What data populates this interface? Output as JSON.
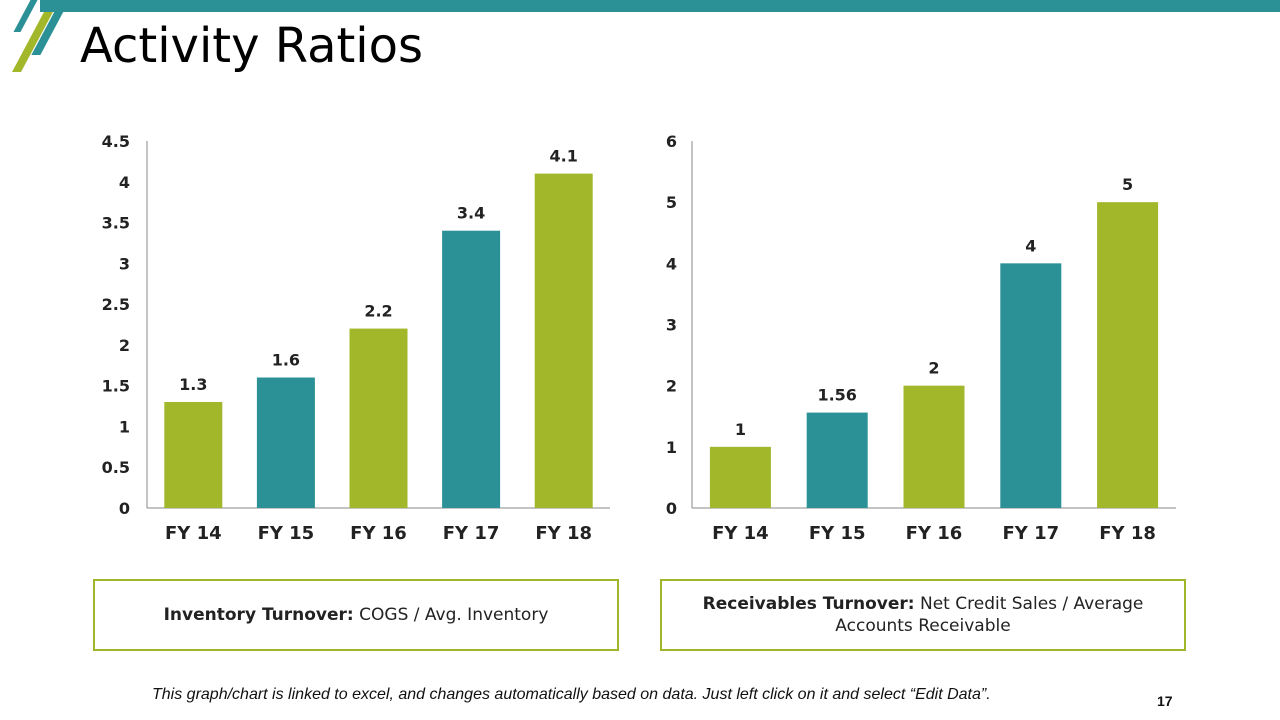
{
  "title": "Activity Ratios",
  "colors": {
    "teal": "#2b9196",
    "green": "#a3b72b",
    "box_border": "#9fb52b"
  },
  "chart_data": [
    {
      "type": "bar",
      "categories": [
        "FY 14",
        "FY 15",
        "FY 16",
        "FY 17",
        "FY 18"
      ],
      "values": [
        1.3,
        1.6,
        2.2,
        3.4,
        4.1
      ],
      "value_labels": [
        "1.3",
        "1.6",
        "2.2",
        "3.4",
        "4.1"
      ],
      "bar_colors": [
        "green",
        "teal",
        "green",
        "teal",
        "green"
      ],
      "ylim": [
        0,
        4.5
      ],
      "yticks": [
        "0",
        "0.5",
        "1",
        "1.5",
        "2",
        "2.5",
        "3",
        "3.5",
        "4",
        "4.5"
      ],
      "grid": false,
      "title": "",
      "xlabel": "",
      "ylabel": ""
    },
    {
      "type": "bar",
      "categories": [
        "FY 14",
        "FY 15",
        "FY 16",
        "FY 17",
        "FY 18"
      ],
      "values": [
        1,
        1.56,
        2,
        4,
        5
      ],
      "value_labels": [
        "1",
        "1.56",
        "2",
        "4",
        "5"
      ],
      "bar_colors": [
        "green",
        "teal",
        "green",
        "teal",
        "green"
      ],
      "ylim": [
        0,
        6
      ],
      "yticks": [
        "0",
        "1",
        "2",
        "3",
        "4",
        "5",
        "6"
      ],
      "grid": false,
      "title": "",
      "xlabel": "",
      "ylabel": ""
    }
  ],
  "formulas": [
    {
      "term": "Inventory Turnover:",
      "definition": " COGS / Avg. Inventory"
    },
    {
      "term": "Receivables Turnover:",
      "definition": " Net Credit Sales / Average Accounts Receivable"
    }
  ],
  "footnote": "This graph/chart is linked to excel, and changes automatically based on data. Just left click on it and select “Edit Data”.",
  "page_number": "17"
}
